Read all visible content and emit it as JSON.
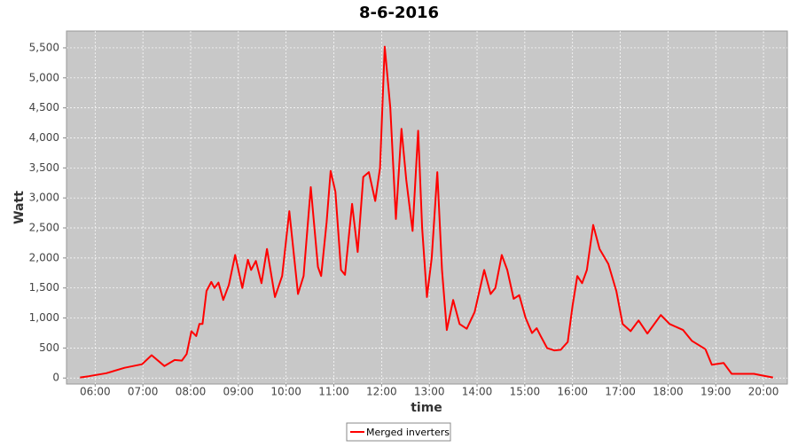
{
  "chart_data": {
    "type": "line",
    "title": "8-6-2016",
    "x_label": "time",
    "y_label": "Watt",
    "x": [
      "05:41",
      "05:52",
      "06:14",
      "06:37",
      "06:59",
      "07:11",
      "07:27",
      "07:40",
      "07:49",
      "07:55",
      "08:01",
      "08:07",
      "08:11",
      "08:15",
      "08:20",
      "08:26",
      "08:30",
      "08:35",
      "08:41",
      "08:48",
      "08:56",
      "09:05",
      "09:12",
      "09:16",
      "09:22",
      "09:29",
      "09:36",
      "09:46",
      "09:55",
      "10:04",
      "10:15",
      "10:22",
      "10:31",
      "10:40",
      "10:44",
      "10:51",
      "10:56",
      "11:02",
      "11:09",
      "11:14",
      "11:23",
      "11:30",
      "11:37",
      "11:44",
      "11:52",
      "11:58",
      "12:04",
      "12:11",
      "12:18",
      "12:25",
      "12:31",
      "12:39",
      "12:46",
      "12:51",
      "12:57",
      "13:03",
      "13:10",
      "13:16",
      "13:22",
      "13:30",
      "13:38",
      "13:47",
      "13:57",
      "14:09",
      "14:17",
      "14:23",
      "14:31",
      "14:38",
      "14:46",
      "14:53",
      "15:01",
      "15:09",
      "15:15",
      "15:20",
      "15:28",
      "15:37",
      "15:45",
      "15:54",
      "16:00",
      "16:06",
      "16:12",
      "16:18",
      "16:26",
      "16:34",
      "16:45",
      "16:55",
      "17:03",
      "17:13",
      "17:23",
      "17:34",
      "17:51",
      "18:02",
      "18:19",
      "18:30",
      "18:47",
      "18:55",
      "19:10",
      "19:20",
      "19:37",
      "19:48",
      "19:59",
      "20:12"
    ],
    "series": [
      {
        "name": "Merged inverters",
        "color": "#ff0000",
        "values": [
          10,
          30,
          80,
          170,
          230,
          380,
          200,
          300,
          290,
          400,
          780,
          700,
          900,
          900,
          1450,
          1600,
          1500,
          1590,
          1300,
          1550,
          2050,
          1500,
          1970,
          1800,
          1950,
          1580,
          2150,
          1350,
          1700,
          2780,
          1400,
          1700,
          3180,
          1850,
          1700,
          2600,
          3450,
          3100,
          1800,
          1720,
          2900,
          2100,
          3350,
          3430,
          2950,
          3500,
          5520,
          4500,
          2650,
          4150,
          3300,
          2450,
          4120,
          2500,
          1350,
          2000,
          3430,
          1800,
          800,
          1300,
          900,
          820,
          1100,
          1800,
          1400,
          1500,
          2050,
          1800,
          1320,
          1380,
          1000,
          750,
          830,
          700,
          500,
          460,
          470,
          600,
          1200,
          1700,
          1580,
          1800,
          2550,
          2150,
          1900,
          1450,
          900,
          780,
          960,
          740,
          1050,
          900,
          800,
          620,
          480,
          220,
          250,
          70,
          70,
          70,
          40,
          10
        ]
      }
    ],
    "xlim": [
      "05:24",
      "20:30"
    ],
    "xticks": [
      "06:00",
      "07:00",
      "08:00",
      "09:00",
      "10:00",
      "11:00",
      "12:00",
      "13:00",
      "14:00",
      "15:00",
      "16:00",
      "17:00",
      "18:00",
      "19:00",
      "20:00"
    ],
    "ylim": [
      -100,
      5780
    ],
    "yticks": [
      0,
      500,
      {
        "value": 1000,
        "label": "1,000"
      },
      {
        "value": 1500,
        "label": "1,500"
      },
      {
        "value": 2000,
        "label": "2,000"
      },
      {
        "value": 2500,
        "label": "2,500"
      },
      {
        "value": 3000,
        "label": "3,000"
      },
      {
        "value": 3500,
        "label": "3,500"
      },
      {
        "value": 4000,
        "label": "4,000"
      },
      {
        "value": 4500,
        "label": "4,500"
      },
      {
        "value": 5000,
        "label": "5,000"
      },
      {
        "value": 5500,
        "label": "5,500"
      }
    ],
    "grid": true,
    "legend": "bottom"
  }
}
